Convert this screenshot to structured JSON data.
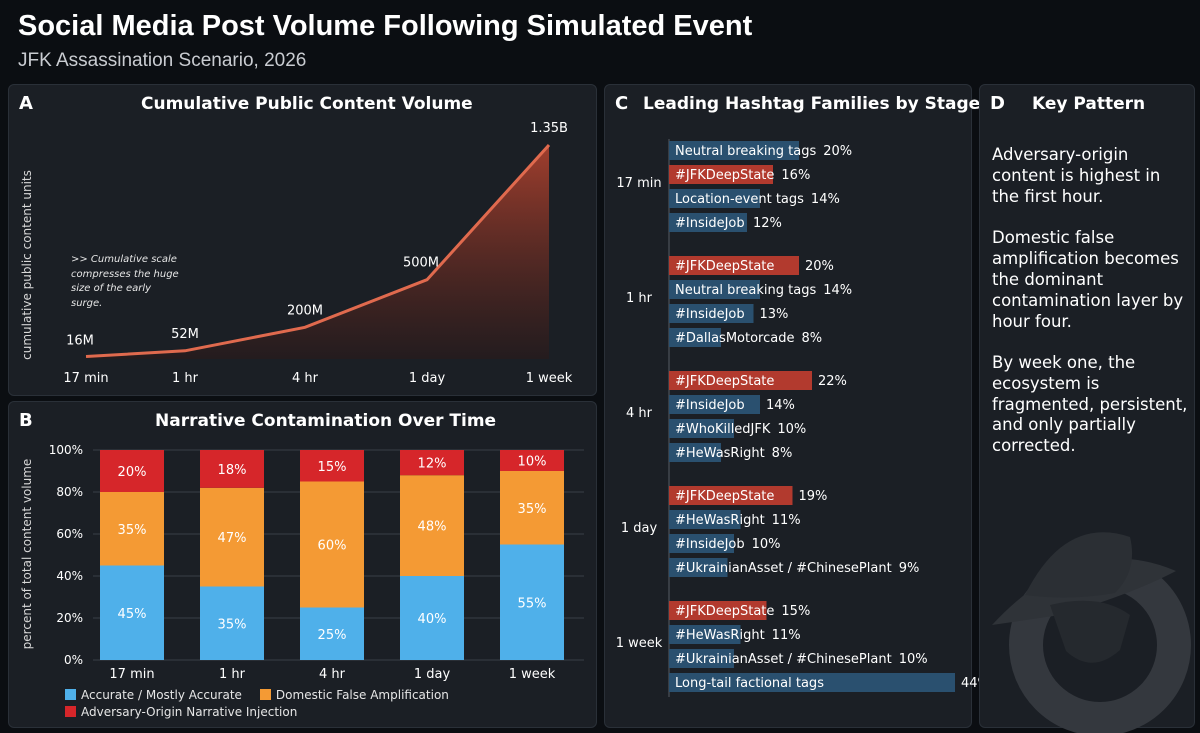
{
  "header": {
    "title": "Social Media Post Volume Following Simulated Event",
    "subtitle": "JFK Assassination Scenario, 2026"
  },
  "colors": {
    "accurate": "#4fb0ea",
    "domestic": "#f49a34",
    "adversary": "#d6262a",
    "line": "#e06a4e",
    "hashtag_red": "#b23a2e",
    "hashtag_blue": "#2a506f"
  },
  "panel_a": {
    "letter": "A",
    "title": "Cumulative Public Content Volume",
    "note": ">> Cumulative scale compresses the huge size of the early surge."
  },
  "panel_b": {
    "letter": "B",
    "title": "Narrative Contamination Over Time"
  },
  "panel_c": {
    "letter": "C",
    "title": "Leading Hashtag Families by Stage"
  },
  "panel_d": {
    "letter": "D",
    "title": "Key Pattern",
    "paragraphs": [
      "Adversary-origin content is highest in the first hour.",
      "Domestic false amplification becomes the dominant contamination layer by hour four.",
      "By week one, the ecosystem is fragmented, persistent, and only partially corrected."
    ]
  },
  "chart_data": [
    {
      "type": "area",
      "title": "Cumulative Public Content Volume",
      "ylabel": "cumulative public content units",
      "categories": [
        "17 min",
        "1 hr",
        "4 hr",
        "1 day",
        "1 week"
      ],
      "values": [
        16000000,
        52000000,
        200000000,
        500000000,
        1350000000
      ],
      "data_labels": [
        "16M",
        "52M",
        "200M",
        "500M",
        "1.35B"
      ]
    },
    {
      "type": "bar",
      "stacked": true,
      "title": "Narrative Contamination Over Time",
      "ylabel": "percent of total content volume",
      "ylim": [
        0,
        100
      ],
      "yticks": [
        "0%",
        "20%",
        "40%",
        "60%",
        "80%",
        "100%"
      ],
      "categories": [
        "17 min",
        "1 hr",
        "4 hr",
        "1 day",
        "1 week"
      ],
      "series": [
        {
          "name": "Accurate / Mostly Accurate",
          "values": [
            45,
            35,
            25,
            40,
            55
          ]
        },
        {
          "name": "Domestic False Amplification",
          "values": [
            35,
            47,
            60,
            48,
            35
          ]
        },
        {
          "name": "Adversary-Origin Narrative Injection",
          "values": [
            20,
            18,
            15,
            12,
            10
          ]
        }
      ],
      "legend": "bottom"
    },
    {
      "type": "bar",
      "orientation": "horizontal",
      "title": "Leading Hashtag Families by Stage",
      "groups": [
        {
          "stage": "17 min",
          "items": [
            {
              "label": "Neutral breaking tags",
              "value": 20,
              "highlight": false
            },
            {
              "label": "#JFKDeepState",
              "value": 16,
              "highlight": true
            },
            {
              "label": "Location-event tags",
              "value": 14,
              "highlight": false
            },
            {
              "label": "#InsideJob",
              "value": 12,
              "highlight": false
            }
          ]
        },
        {
          "stage": "1 hr",
          "items": [
            {
              "label": "#JFKDeepState",
              "value": 20,
              "highlight": true
            },
            {
              "label": "Neutral breaking tags",
              "value": 14,
              "highlight": false
            },
            {
              "label": "#InsideJob",
              "value": 13,
              "highlight": false
            },
            {
              "label": "#DallasMotorcade",
              "value": 8,
              "highlight": false
            }
          ]
        },
        {
          "stage": "4 hr",
          "items": [
            {
              "label": "#JFKDeepState",
              "value": 22,
              "highlight": true
            },
            {
              "label": "#InsideJob",
              "value": 14,
              "highlight": false
            },
            {
              "label": "#WhoKilledJFK",
              "value": 10,
              "highlight": false
            },
            {
              "label": "#HeWasRight",
              "value": 8,
              "highlight": false
            }
          ]
        },
        {
          "stage": "1 day",
          "items": [
            {
              "label": "#JFKDeepState",
              "value": 19,
              "highlight": true
            },
            {
              "label": "#HeWasRight",
              "value": 11,
              "highlight": false
            },
            {
              "label": "#InsideJob",
              "value": 10,
              "highlight": false
            },
            {
              "label": "#UkrainianAsset / #ChinesePlant",
              "value": 9,
              "highlight": false
            }
          ]
        },
        {
          "stage": "1 week",
          "items": [
            {
              "label": "#JFKDeepState",
              "value": 15,
              "highlight": true
            },
            {
              "label": "#HeWasRight",
              "value": 11,
              "highlight": false
            },
            {
              "label": "#UkrainianAsset / #ChinesePlant",
              "value": 10,
              "highlight": false
            },
            {
              "label": "Long-tail factional tags",
              "value": 44,
              "highlight": false
            }
          ]
        }
      ]
    }
  ]
}
